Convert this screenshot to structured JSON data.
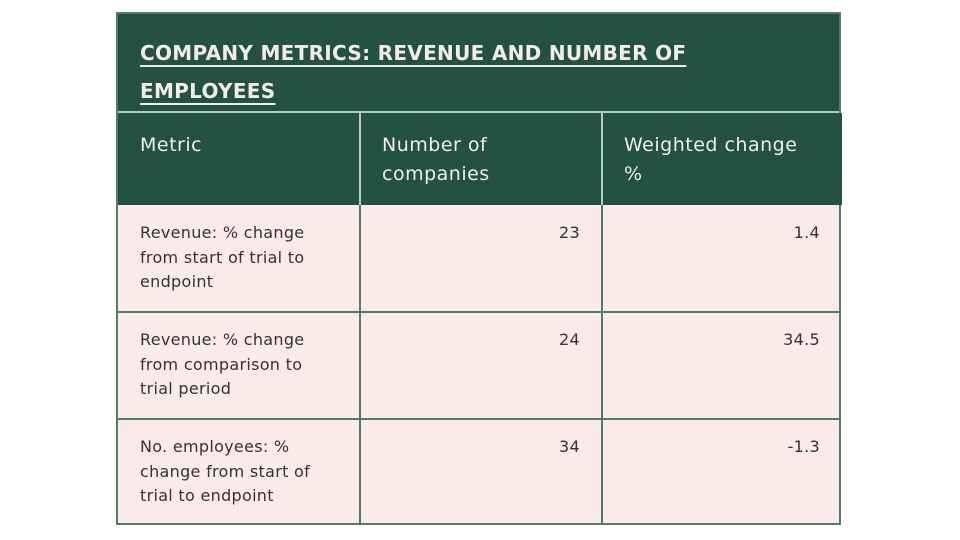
{
  "table": {
    "title": "COMPANY METRICS: REVENUE AND NUMBER OF EMPLOYEES",
    "headers": [
      "Metric",
      "Number of companies",
      "Weighted change %"
    ],
    "rows": [
      {
        "metric": "Revenue: % change from start of trial to endpoint",
        "companies": "23",
        "change": "1.4"
      },
      {
        "metric": "Revenue: % change from comparison to trial period",
        "companies": "24",
        "change": "34.5"
      },
      {
        "metric": "No. employees: % change from start of trial to endpoint",
        "companies": "34",
        "change": "-1.3"
      }
    ],
    "colors": {
      "header_bg": "#235243",
      "body_bg": "#fbeaea",
      "border": "#4e7d6b"
    }
  }
}
